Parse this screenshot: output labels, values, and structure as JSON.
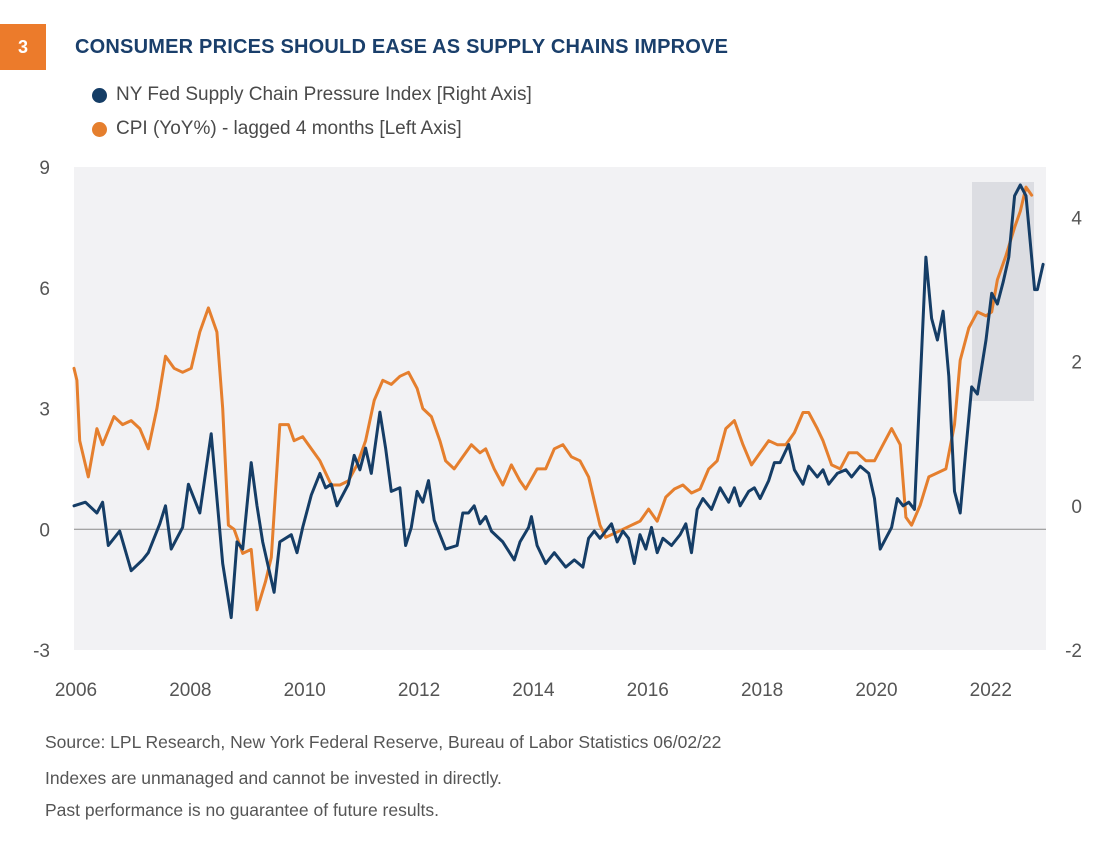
{
  "header": {
    "badge": "3",
    "title": "CONSUMER PRICES SHOULD EASE AS SUPPLY CHAINS IMPROVE"
  },
  "colors": {
    "navy": "#153d66",
    "orange": "#e57f2e",
    "plot_bg": "#f2f2f4",
    "highlight": "#dcdde2"
  },
  "footer": {
    "source": "Source: LPL Research, New York Federal Reserve, Bureau of Labor Statistics  06/02/22",
    "disclaimer1": "Indexes are unmanaged and cannot be invested in directly.",
    "disclaimer2": "Past performance is no guarantee of future results."
  },
  "chart_data": {
    "type": "line",
    "title": "CONSUMER PRICES SHOULD EASE AS SUPPLY CHAINS IMPROVE",
    "x_ticks": [
      "2006",
      "2008",
      "2010",
      "2012",
      "2014",
      "2016",
      "2018",
      "2020",
      "2022"
    ],
    "left_axis": {
      "ticks": [
        "9",
        "6",
        "3",
        "0",
        "-3"
      ],
      "ylim": [
        -3,
        9
      ]
    },
    "right_axis": {
      "ticks": [
        "4",
        "2",
        "0",
        "-2"
      ],
      "ylim": [
        -2,
        4.7
      ]
    },
    "zero_line": true,
    "highlight_range": [
      2021.2,
      2022.2
    ],
    "series": [
      {
        "name": "NY Fed Supply Chain Pressure Index [Right Axis]",
        "axis": "right",
        "color": "#153d66",
        "points": [
          [
            2006.0,
            0.0
          ],
          [
            2006.2,
            0.05
          ],
          [
            2006.4,
            -0.1
          ],
          [
            2006.5,
            0.05
          ],
          [
            2006.6,
            -0.55
          ],
          [
            2006.8,
            -0.35
          ],
          [
            2007.0,
            -0.9
          ],
          [
            2007.2,
            -0.75
          ],
          [
            2007.3,
            -0.65
          ],
          [
            2007.5,
            -0.25
          ],
          [
            2007.6,
            0.0
          ],
          [
            2007.7,
            -0.6
          ],
          [
            2007.9,
            -0.3
          ],
          [
            2008.0,
            0.3
          ],
          [
            2008.1,
            0.1
          ],
          [
            2008.2,
            -0.1
          ],
          [
            2008.4,
            1.0
          ],
          [
            2008.6,
            -0.8
          ],
          [
            2008.75,
            -1.55
          ],
          [
            2008.85,
            -0.5
          ],
          [
            2008.95,
            -0.6
          ],
          [
            2009.1,
            0.6
          ],
          [
            2009.2,
            0.0
          ],
          [
            2009.3,
            -0.5
          ],
          [
            2009.5,
            -1.2
          ],
          [
            2009.6,
            -0.5
          ],
          [
            2009.8,
            -0.4
          ],
          [
            2009.9,
            -0.65
          ],
          [
            2010.0,
            -0.3
          ],
          [
            2010.15,
            0.15
          ],
          [
            2010.3,
            0.45
          ],
          [
            2010.4,
            0.25
          ],
          [
            2010.5,
            0.3
          ],
          [
            2010.6,
            0.0
          ],
          [
            2010.8,
            0.3
          ],
          [
            2010.9,
            0.7
          ],
          [
            2011.0,
            0.5
          ],
          [
            2011.1,
            0.8
          ],
          [
            2011.2,
            0.45
          ],
          [
            2011.35,
            1.3
          ],
          [
            2011.45,
            0.8
          ],
          [
            2011.55,
            0.2
          ],
          [
            2011.7,
            0.25
          ],
          [
            2011.8,
            -0.55
          ],
          [
            2011.9,
            -0.3
          ],
          [
            2012.0,
            0.2
          ],
          [
            2012.1,
            0.05
          ],
          [
            2012.2,
            0.35
          ],
          [
            2012.3,
            -0.2
          ],
          [
            2012.4,
            -0.4
          ],
          [
            2012.5,
            -0.6
          ],
          [
            2012.7,
            -0.55
          ],
          [
            2012.8,
            -0.1
          ],
          [
            2012.9,
            -0.1
          ],
          [
            2013.0,
            0.0
          ],
          [
            2013.1,
            -0.25
          ],
          [
            2013.2,
            -0.15
          ],
          [
            2013.3,
            -0.35
          ],
          [
            2013.5,
            -0.5
          ],
          [
            2013.7,
            -0.75
          ],
          [
            2013.8,
            -0.5
          ],
          [
            2013.95,
            -0.3
          ],
          [
            2014.0,
            -0.15
          ],
          [
            2014.1,
            -0.55
          ],
          [
            2014.25,
            -0.8
          ],
          [
            2014.4,
            -0.65
          ],
          [
            2014.6,
            -0.85
          ],
          [
            2014.75,
            -0.75
          ],
          [
            2014.9,
            -0.85
          ],
          [
            2015.0,
            -0.45
          ],
          [
            2015.1,
            -0.35
          ],
          [
            2015.2,
            -0.45
          ],
          [
            2015.4,
            -0.25
          ],
          [
            2015.5,
            -0.5
          ],
          [
            2015.6,
            -0.35
          ],
          [
            2015.7,
            -0.45
          ],
          [
            2015.8,
            -0.8
          ],
          [
            2015.9,
            -0.4
          ],
          [
            2016.0,
            -0.6
          ],
          [
            2016.1,
            -0.3
          ],
          [
            2016.2,
            -0.65
          ],
          [
            2016.3,
            -0.45
          ],
          [
            2016.45,
            -0.55
          ],
          [
            2016.6,
            -0.4
          ],
          [
            2016.7,
            -0.25
          ],
          [
            2016.8,
            -0.65
          ],
          [
            2016.9,
            -0.05
          ],
          [
            2017.0,
            0.1
          ],
          [
            2017.15,
            -0.05
          ],
          [
            2017.3,
            0.25
          ],
          [
            2017.45,
            0.05
          ],
          [
            2017.55,
            0.25
          ],
          [
            2017.65,
            0.0
          ],
          [
            2017.8,
            0.2
          ],
          [
            2017.9,
            0.25
          ],
          [
            2018.0,
            0.1
          ],
          [
            2018.15,
            0.35
          ],
          [
            2018.25,
            0.6
          ],
          [
            2018.35,
            0.6
          ],
          [
            2018.5,
            0.85
          ],
          [
            2018.6,
            0.5
          ],
          [
            2018.75,
            0.3
          ],
          [
            2018.85,
            0.55
          ],
          [
            2019.0,
            0.4
          ],
          [
            2019.1,
            0.5
          ],
          [
            2019.2,
            0.3
          ],
          [
            2019.35,
            0.45
          ],
          [
            2019.5,
            0.5
          ],
          [
            2019.6,
            0.4
          ],
          [
            2019.75,
            0.55
          ],
          [
            2019.9,
            0.45
          ],
          [
            2020.0,
            0.1
          ],
          [
            2020.1,
            -0.6
          ],
          [
            2020.3,
            -0.3
          ],
          [
            2020.4,
            0.1
          ],
          [
            2020.5,
            0.0
          ],
          [
            2020.6,
            0.05
          ],
          [
            2020.7,
            -0.05
          ],
          [
            2020.9,
            3.45
          ],
          [
            2021.0,
            2.6
          ],
          [
            2021.1,
            2.3
          ],
          [
            2021.2,
            2.7
          ],
          [
            2021.3,
            1.8
          ],
          [
            2021.4,
            0.2
          ],
          [
            2021.5,
            -0.1
          ],
          [
            2021.6,
            0.8
          ],
          [
            2021.7,
            1.65
          ],
          [
            2021.8,
            1.55
          ],
          [
            2021.95,
            2.3
          ],
          [
            2022.05,
            2.95
          ],
          [
            2022.15,
            2.8
          ],
          [
            2022.25,
            3.1
          ],
          [
            2022.35,
            3.45
          ],
          [
            2022.45,
            4.3
          ],
          [
            2022.55,
            4.45
          ],
          [
            2022.65,
            4.3
          ],
          [
            2022.8,
            3.0
          ],
          [
            2022.85,
            3.0
          ],
          [
            2022.95,
            3.35
          ]
        ]
      },
      {
        "name": "CPI (YoY%) - lagged 4 months [Left Axis]",
        "axis": "left",
        "color": "#e57f2e",
        "points": [
          [
            2006.0,
            4.0
          ],
          [
            2006.05,
            3.7
          ],
          [
            2006.1,
            2.2
          ],
          [
            2006.25,
            1.3
          ],
          [
            2006.4,
            2.5
          ],
          [
            2006.5,
            2.1
          ],
          [
            2006.7,
            2.8
          ],
          [
            2006.85,
            2.6
          ],
          [
            2007.0,
            2.7
          ],
          [
            2007.15,
            2.5
          ],
          [
            2007.3,
            2.0
          ],
          [
            2007.45,
            3.0
          ],
          [
            2007.6,
            4.3
          ],
          [
            2007.75,
            4.0
          ],
          [
            2007.9,
            3.9
          ],
          [
            2008.05,
            4.0
          ],
          [
            2008.2,
            4.9
          ],
          [
            2008.35,
            5.5
          ],
          [
            2008.5,
            4.9
          ],
          [
            2008.6,
            3.0
          ],
          [
            2008.7,
            0.1
          ],
          [
            2008.8,
            0.0
          ],
          [
            2008.95,
            -0.6
          ],
          [
            2009.1,
            -0.5
          ],
          [
            2009.2,
            -2.0
          ],
          [
            2009.35,
            -1.3
          ],
          [
            2009.45,
            -0.7
          ],
          [
            2009.6,
            2.6
          ],
          [
            2009.75,
            2.6
          ],
          [
            2009.85,
            2.2
          ],
          [
            2010.0,
            2.3
          ],
          [
            2010.15,
            2.0
          ],
          [
            2010.3,
            1.7
          ],
          [
            2010.5,
            1.1
          ],
          [
            2010.65,
            1.1
          ],
          [
            2010.8,
            1.2
          ],
          [
            2010.95,
            1.6
          ],
          [
            2011.1,
            2.2
          ],
          [
            2011.25,
            3.2
          ],
          [
            2011.4,
            3.7
          ],
          [
            2011.55,
            3.6
          ],
          [
            2011.7,
            3.8
          ],
          [
            2011.85,
            3.9
          ],
          [
            2012.0,
            3.5
          ],
          [
            2012.1,
            3.0
          ],
          [
            2012.25,
            2.8
          ],
          [
            2012.4,
            2.2
          ],
          [
            2012.5,
            1.7
          ],
          [
            2012.65,
            1.5
          ],
          [
            2012.8,
            1.8
          ],
          [
            2012.95,
            2.1
          ],
          [
            2013.1,
            1.9
          ],
          [
            2013.2,
            2.0
          ],
          [
            2013.35,
            1.5
          ],
          [
            2013.5,
            1.1
          ],
          [
            2013.65,
            1.6
          ],
          [
            2013.8,
            1.2
          ],
          [
            2013.9,
            1.0
          ],
          [
            2014.1,
            1.5
          ],
          [
            2014.25,
            1.5
          ],
          [
            2014.4,
            2.0
          ],
          [
            2014.55,
            2.1
          ],
          [
            2014.7,
            1.8
          ],
          [
            2014.85,
            1.7
          ],
          [
            2015.0,
            1.3
          ],
          [
            2015.2,
            0.1
          ],
          [
            2015.3,
            -0.2
          ],
          [
            2015.45,
            -0.1
          ],
          [
            2015.6,
            0.0
          ],
          [
            2015.75,
            0.1
          ],
          [
            2015.9,
            0.2
          ],
          [
            2016.05,
            0.5
          ],
          [
            2016.2,
            0.2
          ],
          [
            2016.35,
            0.8
          ],
          [
            2016.5,
            1.0
          ],
          [
            2016.65,
            1.1
          ],
          [
            2016.8,
            0.9
          ],
          [
            2016.95,
            1.0
          ],
          [
            2017.1,
            1.5
          ],
          [
            2017.25,
            1.7
          ],
          [
            2017.4,
            2.5
          ],
          [
            2017.55,
            2.7
          ],
          [
            2017.7,
            2.1
          ],
          [
            2017.85,
            1.6
          ],
          [
            2018.0,
            1.9
          ],
          [
            2018.15,
            2.2
          ],
          [
            2018.3,
            2.1
          ],
          [
            2018.45,
            2.1
          ],
          [
            2018.6,
            2.4
          ],
          [
            2018.75,
            2.9
          ],
          [
            2018.85,
            2.9
          ],
          [
            2019.0,
            2.5
          ],
          [
            2019.1,
            2.2
          ],
          [
            2019.25,
            1.6
          ],
          [
            2019.4,
            1.5
          ],
          [
            2019.55,
            1.9
          ],
          [
            2019.7,
            1.9
          ],
          [
            2019.85,
            1.7
          ],
          [
            2020.0,
            1.7
          ],
          [
            2020.15,
            2.1
          ],
          [
            2020.3,
            2.5
          ],
          [
            2020.45,
            2.1
          ],
          [
            2020.55,
            0.3
          ],
          [
            2020.65,
            0.1
          ],
          [
            2020.8,
            0.6
          ],
          [
            2020.95,
            1.3
          ],
          [
            2021.1,
            1.4
          ],
          [
            2021.25,
            1.5
          ],
          [
            2021.4,
            2.6
          ],
          [
            2021.5,
            4.2
          ],
          [
            2021.65,
            5.0
          ],
          [
            2021.8,
            5.4
          ],
          [
            2021.95,
            5.3
          ],
          [
            2022.05,
            5.4
          ],
          [
            2022.15,
            6.2
          ],
          [
            2022.3,
            6.8
          ],
          [
            2022.45,
            7.5
          ],
          [
            2022.55,
            7.9
          ],
          [
            2022.65,
            8.5
          ],
          [
            2022.75,
            8.3
          ]
        ]
      }
    ]
  }
}
